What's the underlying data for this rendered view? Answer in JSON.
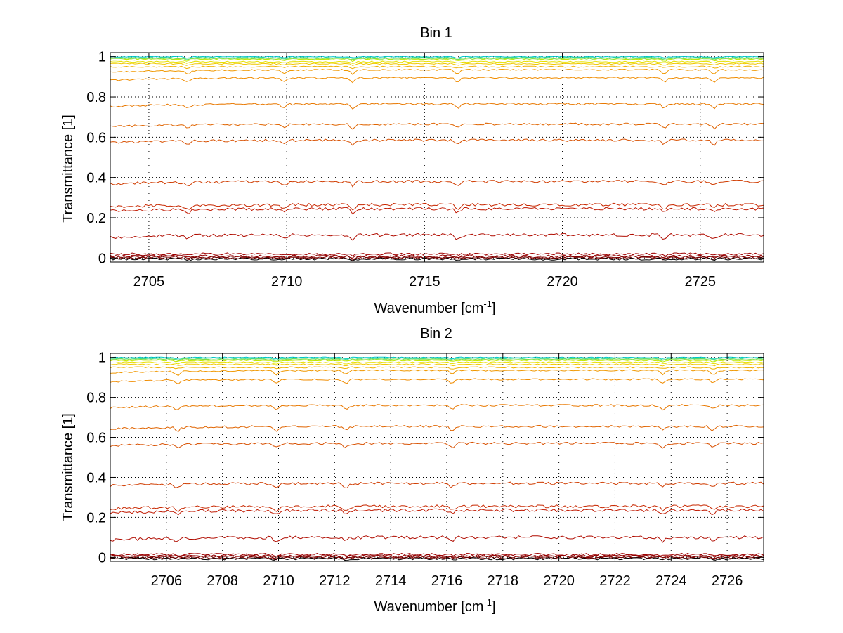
{
  "chart_data": [
    {
      "type": "line",
      "title": "Bin 1",
      "xlabel_main": "Wavenumber [cm",
      "xlabel_sup": "-1",
      "xlabel_end": "]",
      "ylabel": "Transmittance [1]",
      "xlim": [
        2703.6,
        2727.3
      ],
      "ylim": [
        -0.02,
        1.02
      ],
      "xticks": [
        "2705",
        "2710",
        "2715",
        "2720",
        "2725"
      ],
      "xtick_values": [
        2705,
        2710,
        2715,
        2720,
        2725
      ],
      "yticks": [
        "0",
        "0.2",
        "0.4",
        "0.6",
        "0.8",
        "1"
      ],
      "ytick_values": [
        0,
        0.2,
        0.4,
        0.6,
        0.8,
        1
      ],
      "grid": true,
      "series_levels": [
        1.0,
        0.995,
        0.99,
        0.985,
        0.975,
        0.965,
        0.95,
        0.935,
        0.895,
        0.765,
        0.665,
        0.585,
        0.38,
        0.265,
        0.245,
        0.115,
        0.02,
        0.01,
        0.005,
        0.0,
        -0.005
      ],
      "series_colors": [
        "#00c8c8",
        "#40d890",
        "#80e040",
        "#c0e800",
        "#e8e000",
        "#f0c800",
        "#f0b000",
        "#f09800",
        "#f08c00",
        "#e87800",
        "#e06400",
        "#d85000",
        "#d03c00",
        "#c82800",
        "#c01800",
        "#b00c00",
        "#a00000",
        "#900000",
        "#800000",
        "#700000",
        "#000000"
      ]
    },
    {
      "type": "line",
      "title": "Bin 2",
      "xlabel_main": "Wavenumber [cm",
      "xlabel_sup": "-1",
      "xlabel_end": "]",
      "ylabel": "Transmittance [1]",
      "xlim": [
        2704.0,
        2727.3
      ],
      "ylim": [
        -0.02,
        1.02
      ],
      "xticks": [
        "2706",
        "2708",
        "2710",
        "2712",
        "2714",
        "2716",
        "2718",
        "2720",
        "2722",
        "2724",
        "2726"
      ],
      "xtick_values": [
        2706,
        2708,
        2710,
        2712,
        2714,
        2716,
        2718,
        2720,
        2722,
        2724,
        2726
      ],
      "yticks": [
        "0",
        "0.2",
        "0.4",
        "0.6",
        "0.8",
        "1"
      ],
      "ytick_values": [
        0,
        0.2,
        0.4,
        0.6,
        0.8,
        1
      ],
      "grid": true,
      "series_levels": [
        1.0,
        0.995,
        0.99,
        0.985,
        0.975,
        0.965,
        0.95,
        0.935,
        0.89,
        0.76,
        0.655,
        0.57,
        0.37,
        0.255,
        0.235,
        0.1,
        0.015,
        0.008,
        0.003,
        -0.002,
        -0.007
      ],
      "series_colors": [
        "#00c8c8",
        "#40d890",
        "#80e040",
        "#c0e800",
        "#e8e000",
        "#f0c800",
        "#f0b000",
        "#f09800",
        "#f08c00",
        "#e87800",
        "#e06400",
        "#d85000",
        "#d03c00",
        "#c82800",
        "#c01800",
        "#b00c00",
        "#a00000",
        "#900000",
        "#800000",
        "#700000",
        "#000000"
      ]
    }
  ]
}
